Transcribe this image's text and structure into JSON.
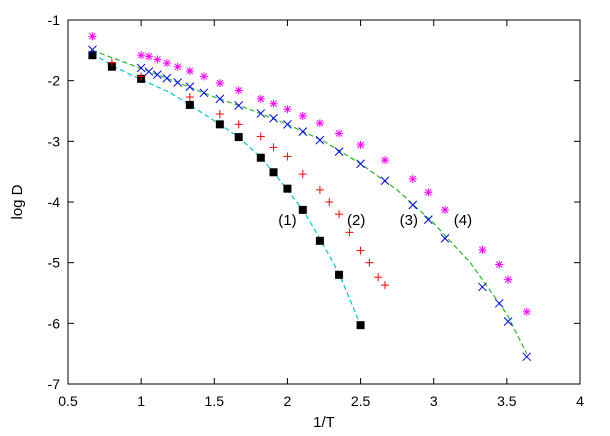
{
  "chart_data": {
    "type": "scatter",
    "xlabel": "1/T",
    "ylabel": "log D",
    "xlim": [
      0.5,
      4
    ],
    "ylim": [
      -7,
      -1
    ],
    "grid": false,
    "x_ticks": [
      "0.5",
      "1",
      "1.5",
      "2",
      "2.5",
      "3",
      "3.5",
      "4"
    ],
    "y_ticks": [
      "-7",
      "-6",
      "-5",
      "-4",
      "-3",
      "-2",
      "-1"
    ],
    "series": [
      {
        "marker": "filled-square",
        "color": "#000000",
        "points": [
          [
            0.667,
            -1.58
          ],
          [
            0.8,
            -1.77
          ],
          [
            1.0,
            -1.97
          ],
          [
            1.333,
            -2.4
          ],
          [
            1.538,
            -2.72
          ],
          [
            1.667,
            -2.93
          ],
          [
            1.818,
            -3.27
          ],
          [
            1.905,
            -3.51
          ],
          [
            2.0,
            -3.78
          ],
          [
            2.105,
            -4.13
          ],
          [
            2.222,
            -4.64
          ],
          [
            2.353,
            -5.2
          ],
          [
            2.5,
            -6.03
          ]
        ]
      },
      {
        "marker": "plus",
        "color": "#ff0000",
        "points": [
          [
            0.8,
            -1.7
          ],
          [
            1.0,
            -1.93
          ],
          [
            1.333,
            -2.27
          ],
          [
            1.538,
            -2.55
          ],
          [
            1.667,
            -2.72
          ],
          [
            1.818,
            -2.92
          ],
          [
            1.905,
            -3.1
          ],
          [
            2.0,
            -3.25
          ],
          [
            2.105,
            -3.54
          ],
          [
            2.222,
            -3.8
          ],
          [
            2.286,
            -4.0
          ],
          [
            2.353,
            -4.2
          ],
          [
            2.424,
            -4.5
          ],
          [
            2.5,
            -4.8
          ],
          [
            2.56,
            -5.0
          ],
          [
            2.62,
            -5.24
          ],
          [
            2.667,
            -5.37
          ]
        ]
      },
      {
        "marker": "x",
        "color": "#0000ff",
        "points": [
          [
            0.667,
            -1.49
          ],
          [
            1.0,
            -1.79
          ],
          [
            1.053,
            -1.85
          ],
          [
            1.111,
            -1.9
          ],
          [
            1.176,
            -1.96
          ],
          [
            1.25,
            -2.03
          ],
          [
            1.333,
            -2.1
          ],
          [
            1.429,
            -2.2
          ],
          [
            1.538,
            -2.3
          ],
          [
            1.667,
            -2.41
          ],
          [
            1.818,
            -2.54
          ],
          [
            1.905,
            -2.62
          ],
          [
            2.0,
            -2.72
          ],
          [
            2.105,
            -2.84
          ],
          [
            2.222,
            -2.98
          ],
          [
            2.353,
            -3.17
          ],
          [
            2.5,
            -3.37
          ],
          [
            2.667,
            -3.65
          ],
          [
            2.857,
            -4.05
          ],
          [
            2.963,
            -4.29
          ],
          [
            3.077,
            -4.6
          ],
          [
            3.333,
            -5.4
          ],
          [
            3.448,
            -5.67
          ],
          [
            3.509,
            -5.97
          ],
          [
            3.636,
            -6.55
          ]
        ]
      },
      {
        "marker": "star",
        "color": "#ff00ff",
        "points": [
          [
            0.667,
            -1.27
          ],
          [
            1.0,
            -1.58
          ],
          [
            1.053,
            -1.6
          ],
          [
            1.111,
            -1.65
          ],
          [
            1.176,
            -1.71
          ],
          [
            1.25,
            -1.77
          ],
          [
            1.333,
            -1.84
          ],
          [
            1.429,
            -1.93
          ],
          [
            1.538,
            -2.04
          ],
          [
            1.667,
            -2.16
          ],
          [
            1.818,
            -2.3
          ],
          [
            1.905,
            -2.38
          ],
          [
            2.0,
            -2.47
          ],
          [
            2.105,
            -2.58
          ],
          [
            2.222,
            -2.7
          ],
          [
            2.353,
            -2.87
          ],
          [
            2.5,
            -3.06
          ],
          [
            2.667,
            -3.31
          ],
          [
            2.857,
            -3.62
          ],
          [
            2.963,
            -3.84
          ],
          [
            3.077,
            -4.13
          ],
          [
            3.333,
            -4.79
          ],
          [
            3.448,
            -5.03
          ],
          [
            3.509,
            -5.28
          ],
          [
            3.636,
            -5.81
          ]
        ]
      }
    ],
    "fit_lines": [
      {
        "color": "#00c8d2",
        "points": [
          [
            0.667,
            -1.55
          ],
          [
            0.8,
            -1.75
          ],
          [
            1.0,
            -1.98
          ],
          [
            1.2,
            -2.2
          ],
          [
            1.333,
            -2.4
          ],
          [
            1.538,
            -2.72
          ],
          [
            1.667,
            -2.93
          ],
          [
            1.818,
            -3.27
          ],
          [
            1.905,
            -3.51
          ],
          [
            2.0,
            -3.8
          ],
          [
            2.105,
            -4.13
          ],
          [
            2.222,
            -4.6
          ],
          [
            2.353,
            -5.18
          ],
          [
            2.5,
            -6.03
          ]
        ]
      },
      {
        "color": "#22bb22",
        "points": [
          [
            0.667,
            -1.5
          ],
          [
            1.0,
            -1.8
          ],
          [
            1.25,
            -2.03
          ],
          [
            1.5,
            -2.27
          ],
          [
            1.75,
            -2.48
          ],
          [
            2.0,
            -2.72
          ],
          [
            2.25,
            -3.0
          ],
          [
            2.5,
            -3.37
          ],
          [
            2.75,
            -3.8
          ],
          [
            3.0,
            -4.35
          ],
          [
            3.25,
            -5.0
          ],
          [
            3.5,
            -5.85
          ],
          [
            3.636,
            -6.5
          ]
        ]
      }
    ],
    "annotations": [
      {
        "text": "(1)",
        "x": 2.0,
        "y": -4.3
      },
      {
        "text": "(2)",
        "x": 2.47,
        "y": -4.3
      },
      {
        "text": "(3)",
        "x": 2.83,
        "y": -4.3
      },
      {
        "text": "(4)",
        "x": 3.2,
        "y": -4.3
      }
    ]
  }
}
